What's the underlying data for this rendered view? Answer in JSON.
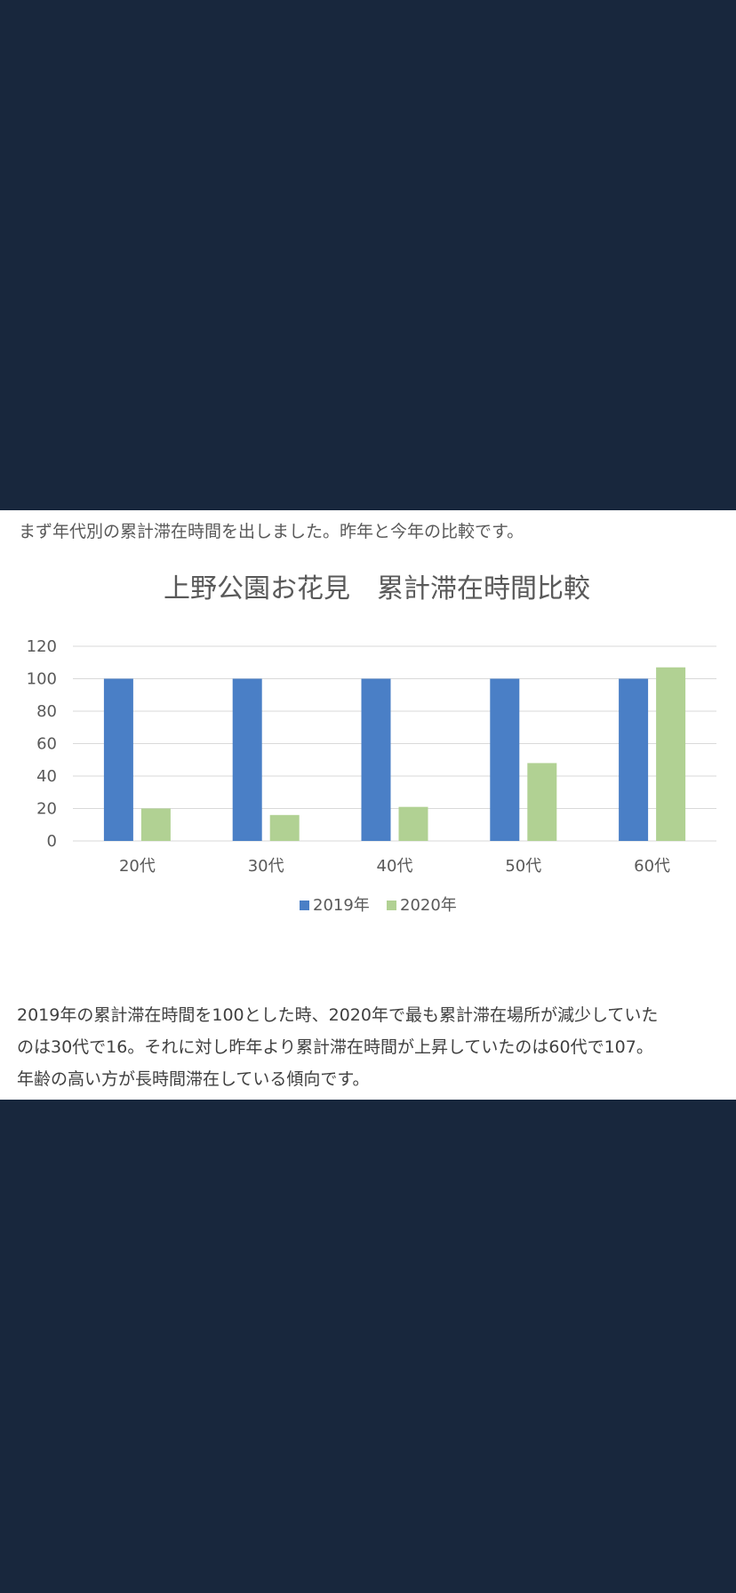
{
  "intro": "まず年代別の累計滞在時間を出しました。昨年と今年の比較です。",
  "chart_data": {
    "type": "bar",
    "title": "上野公園お花見　累計滞在時間比較",
    "categories": [
      "20代",
      "30代",
      "40代",
      "50代",
      "60代"
    ],
    "series": [
      {
        "name": "2019年",
        "values": [
          100,
          100,
          100,
          100,
          100
        ],
        "color": "#4a7fc6"
      },
      {
        "name": "2020年",
        "values": [
          20,
          16,
          21,
          48,
          107
        ],
        "color": "#b1d193"
      }
    ],
    "ylim": [
      0,
      120
    ],
    "yticks": [
      0,
      20,
      40,
      60,
      80,
      100,
      120
    ],
    "xlabel": "",
    "ylabel": "",
    "grid": true,
    "legend": "bottom"
  },
  "summary": [
    "2019年の累計滞在時間を100とした時、2020年で最も累計滞在場所が減少していた",
    "のは30代で16。それに対し昨年より累計滞在時間が上昇していたのは60代で107。",
    "年齢の高い方が長時間滞在している傾向です。"
  ],
  "colors": {
    "background": "#18273d",
    "panel": "#ffffff",
    "gridline": "#d9d9d9"
  }
}
